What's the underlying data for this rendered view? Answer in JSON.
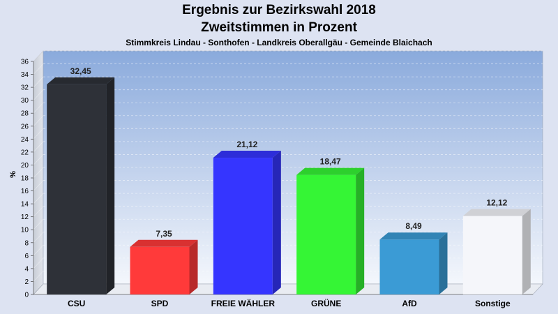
{
  "chart_data": {
    "type": "bar",
    "title": "Ergebnis zur Bezirkswahl 2018",
    "title2": "Zweitstimmen in Prozent",
    "subtitle": "Stimmkreis Lindau - Sonthofen - Landkreis Oberallgäu - Gemeinde Blaichach",
    "ylabel": "%",
    "ylim": [
      0,
      36
    ],
    "yticks": [
      0,
      2,
      4,
      6,
      8,
      10,
      12,
      14,
      16,
      18,
      20,
      22,
      24,
      26,
      28,
      30,
      32,
      34,
      36
    ],
    "categories": [
      "CSU",
      "SPD",
      "FREIE WÄHLER",
      "GRÜNE",
      "AfD",
      "Sonstige"
    ],
    "values": [
      32.45,
      7.35,
      21.12,
      18.47,
      8.49,
      12.12
    ],
    "value_labels": [
      "32,45",
      "7,35",
      "21,12",
      "18,47",
      "8,49",
      "12,12"
    ],
    "colors": [
      "#2e3138",
      "#ff3a3a",
      "#3535ff",
      "#35f535",
      "#3b9bd5",
      "#f5f6fa"
    ],
    "grid": true,
    "legend": "none"
  }
}
